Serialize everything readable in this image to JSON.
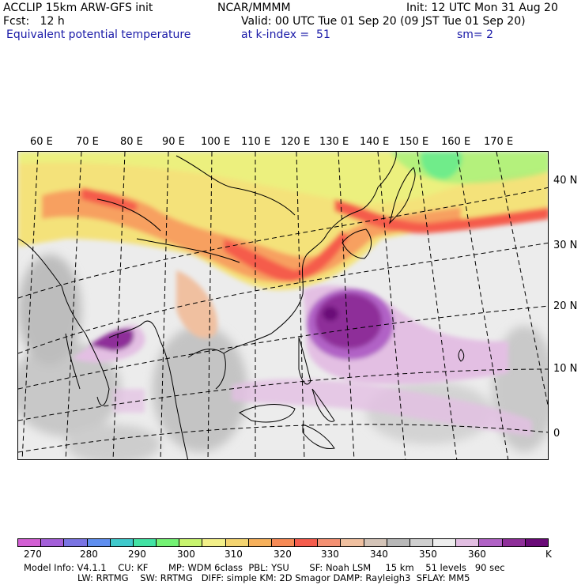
{
  "header": {
    "line1_left": "ACCLIP 15km ARW-GFS init",
    "line1_center": "NCAR/MMMM",
    "line1_right": "Init: 12 UTC Mon 31 Aug 20",
    "line2_left": "Fcst:   12 h",
    "line2_right": "Valid: 00 UTC Tue 01 Sep 20 (09 JST Tue 01 Sep 20)",
    "line3_left": "Equivalent potential temperature",
    "line3_center": "at k-index =  51",
    "line3_right": "sm= 2"
  },
  "map": {
    "longitude_labels": [
      "60 E",
      "70 E",
      "80 E",
      "90 E",
      "100 E",
      "110 E",
      "120 E",
      "130 E",
      "140 E",
      "150 E",
      "160 E",
      "170 E"
    ],
    "latitude_labels": [
      "40 N",
      "30 N",
      "20 N",
      "10 N",
      "0"
    ]
  },
  "colorbar": {
    "colors": [
      "#d35fd4",
      "#a45fd9",
      "#7a74e3",
      "#5f8ff0",
      "#3fc9cc",
      "#42e3a4",
      "#74f274",
      "#c8f46e",
      "#f3f089",
      "#f4d470",
      "#f6b05b",
      "#f78a55",
      "#f55c4c",
      "#f59173",
      "#f0c0a0",
      "#d4c4b8",
      "#b8b8b8",
      "#d0d0d0",
      "#eeeeee",
      "#e3bfe3",
      "#b162c6",
      "#8e2e99",
      "#6a0a78"
    ],
    "labels": [
      "270",
      "280",
      "290",
      "300",
      "310",
      "320",
      "330",
      "340",
      "350",
      "360",
      "K"
    ],
    "unit": "K"
  },
  "footer": {
    "line1": "Model Info: V4.1.1    CU: KF       MP: WDM 6class  PBL: YSU       SF: Noah LSM     15 km    51 levels   90 sec",
    "line2": "LW: RRTMG    SW: RRTMG   DIFF: simple KM: 2D Smagor DAMP: Rayleigh3  SFLAY: MM5"
  }
}
